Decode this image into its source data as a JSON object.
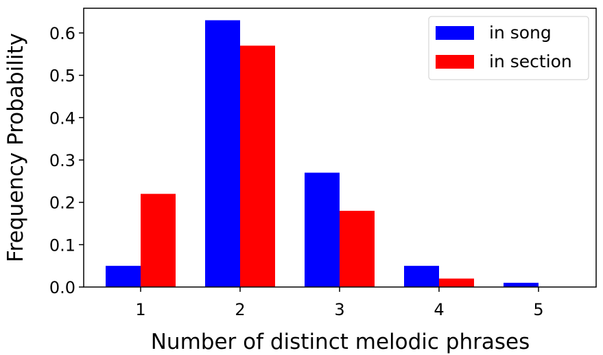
{
  "chart_data": {
    "type": "bar",
    "title": "",
    "xlabel": "Number of distinct melodic phrases",
    "ylabel": "Frequency Probability",
    "categories": [
      "1",
      "2",
      "3",
      "4",
      "5"
    ],
    "series": [
      {
        "name": "in song",
        "color": "#0000ff",
        "values": [
          0.05,
          0.63,
          0.27,
          0.05,
          0.01
        ]
      },
      {
        "name": "in section",
        "color": "#ff0000",
        "values": [
          0.22,
          0.57,
          0.18,
          0.02,
          0.0
        ]
      }
    ],
    "ylim": [
      0,
      0.66
    ],
    "yticks": [
      "0.0",
      "0.1",
      "0.2",
      "0.3",
      "0.4",
      "0.5",
      "0.6"
    ],
    "legend": "top-right",
    "grid": false
  }
}
